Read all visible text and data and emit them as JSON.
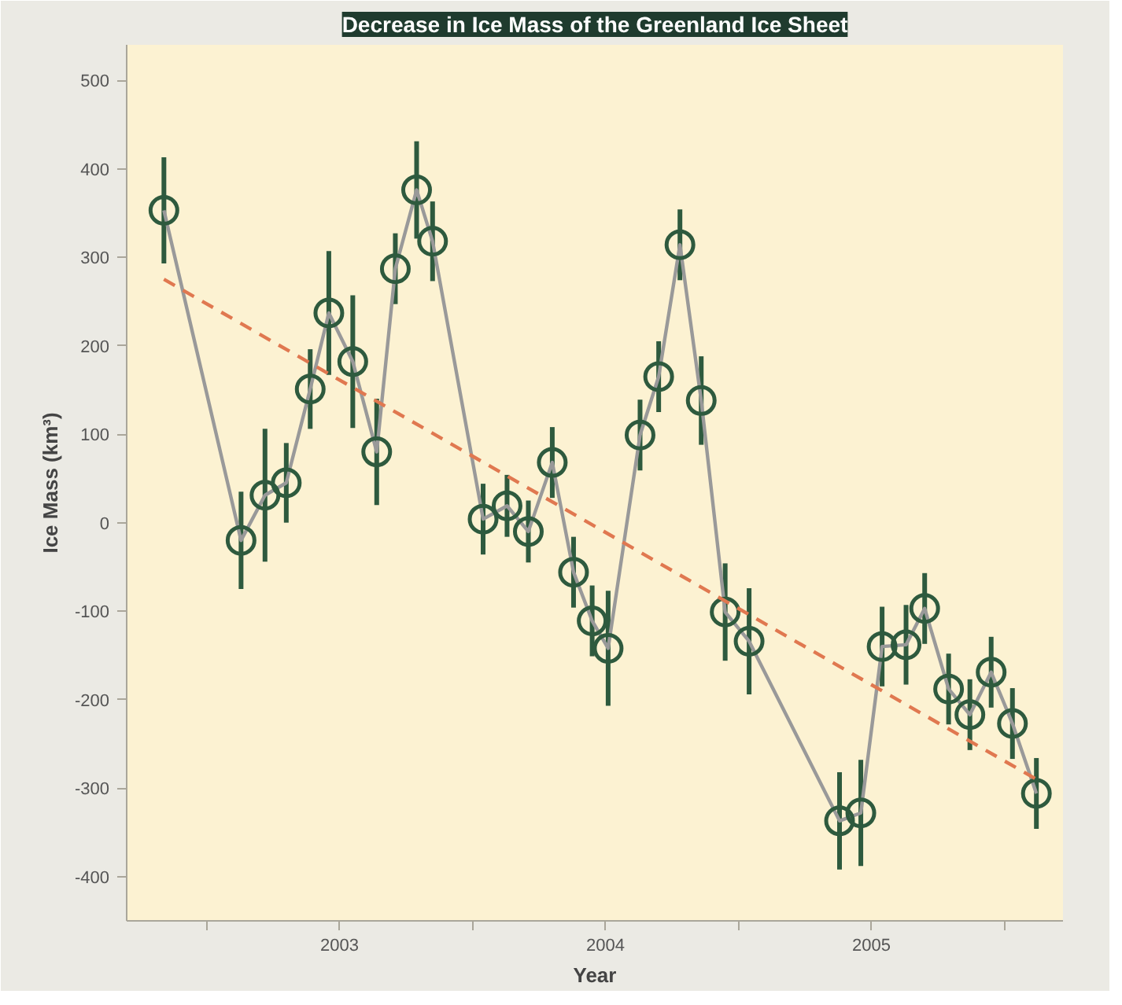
{
  "chart_data": {
    "type": "line",
    "title": "Decrease in Ice Mass of the Greenland Ice Sheet",
    "xlabel": "Year",
    "ylabel": "Ice Mass (km³)",
    "xlim": [
      2002.2,
      2005.72
    ],
    "xticks": [
      {
        "value": 2002.5,
        "label": null
      },
      2003,
      {
        "value": 2003.5,
        "label": null
      },
      2004,
      {
        "value": 2004.5,
        "label": null
      },
      2005,
      {
        "value": 2005.5,
        "label": null
      }
    ],
    "ylim": [
      -450,
      540
    ],
    "yticks": [
      -400,
      -300,
      -200,
      -100,
      0,
      100,
      200,
      300,
      400,
      500
    ],
    "grid": false,
    "series": [
      {
        "color": "#999999",
        "marker": "none",
        "line_style": "solid",
        "x": [
          2002.34,
          2002.63,
          2002.72,
          2002.8,
          2002.89,
          2002.96,
          2003.05,
          2003.14,
          2003.21,
          2003.29,
          2003.35,
          2003.54,
          2003.63,
          2003.71,
          2003.8,
          2003.88,
          2003.95,
          2004.01,
          2004.13,
          2004.2,
          2004.28,
          2004.36,
          2004.45,
          2004.54,
          2004.88,
          2004.96,
          2005.04,
          2005.13,
          2005.2,
          2005.29,
          2005.37,
          2005.45,
          2005.53,
          2005.62
        ],
        "values": [
          353,
          -20,
          31,
          45,
          151,
          237,
          182,
          80,
          287,
          376,
          318,
          4,
          19,
          -10,
          68,
          -56,
          -111,
          -142,
          99,
          165,
          314,
          138,
          -101,
          -134,
          -337,
          -328,
          -140,
          -138,
          -97,
          -188,
          -217,
          -169,
          -227,
          -306
        ]
      },
      {
        "type": "scatter",
        "color": "#2e5a3e",
        "marker": "circle",
        "x": [
          2002.34,
          2002.63,
          2002.72,
          2002.8,
          2002.89,
          2002.96,
          2003.05,
          2003.14,
          2003.21,
          2003.29,
          2003.35,
          2003.54,
          2003.63,
          2003.71,
          2003.8,
          2003.88,
          2003.95,
          2004.01,
          2004.13,
          2004.2,
          2004.28,
          2004.36,
          2004.45,
          2004.54,
          2004.88,
          2004.96,
          2005.04,
          2005.13,
          2005.2,
          2005.29,
          2005.37,
          2005.45,
          2005.53,
          2005.62
        ],
        "values": [
          353,
          -20,
          31,
          45,
          151,
          237,
          182,
          80,
          287,
          376,
          318,
          4,
          19,
          -10,
          68,
          -56,
          -111,
          -142,
          99,
          165,
          314,
          138,
          -101,
          -134,
          -337,
          -328,
          -140,
          -138,
          -97,
          -188,
          -217,
          -169,
          -227,
          -306
        ],
        "errors": [
          60,
          55,
          75,
          45,
          45,
          70,
          75,
          60,
          40,
          55,
          45,
          40,
          35,
          35,
          40,
          40,
          40,
          65,
          40,
          40,
          40,
          50,
          55,
          60,
          55,
          60,
          45,
          45,
          40,
          40,
          40,
          40,
          40,
          40
        ]
      },
      {
        "type": "line",
        "color": "#e07850",
        "marker": "none",
        "line_style": "dashed",
        "x": [
          2002.34,
          2005.62
        ],
        "values": [
          275,
          -290
        ]
      }
    ]
  }
}
